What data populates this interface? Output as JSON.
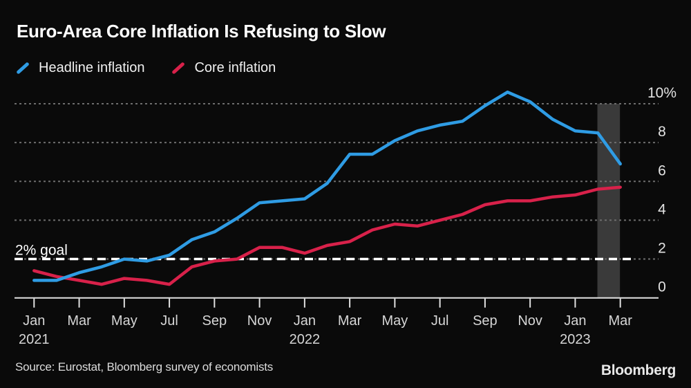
{
  "page": {
    "title": "Euro-Area Core Inflation Is Refusing to Slow",
    "source": "Source: Eurostat, Bloomberg survey of economists",
    "brand": "Bloomberg",
    "background": "#0a0a0a"
  },
  "legend": {
    "items": [
      {
        "label": "Headline inflation",
        "color": "#2f9ce4"
      },
      {
        "label": "Core inflation",
        "color": "#d8214a"
      }
    ]
  },
  "chart_data": {
    "type": "line",
    "title": "Euro-Area Core Inflation Is Refusing to Slow",
    "unit": "%",
    "ylim": [
      0,
      10
    ],
    "grid": "dotted horizontal",
    "legend_position": "top-left",
    "x": [
      "Jan 2021",
      "Feb 2021",
      "Mar 2021",
      "Apr 2021",
      "May 2021",
      "Jun 2021",
      "Jul 2021",
      "Aug 2021",
      "Sep 2021",
      "Oct 2021",
      "Nov 2021",
      "Dec 2021",
      "Jan 2022",
      "Feb 2022",
      "Mar 2022",
      "Apr 2022",
      "May 2022",
      "Jun 2022",
      "Jul 2022",
      "Aug 2022",
      "Sep 2022",
      "Oct 2022",
      "Nov 2022",
      "Dec 2022",
      "Jan 2023",
      "Feb 2023",
      "Mar 2023"
    ],
    "series": [
      {
        "name": "Headline inflation",
        "color": "#2f9ce4",
        "values": [
          0.9,
          0.9,
          1.3,
          1.6,
          2.0,
          1.9,
          2.2,
          3.0,
          3.4,
          4.1,
          4.9,
          5.0,
          5.1,
          5.9,
          7.4,
          7.4,
          8.1,
          8.6,
          8.9,
          9.1,
          9.9,
          10.6,
          10.1,
          9.2,
          8.6,
          8.5,
          6.9
        ]
      },
      {
        "name": "Core inflation",
        "color": "#d8214a",
        "values": [
          1.4,
          1.1,
          0.9,
          0.7,
          1.0,
          0.9,
          0.7,
          1.6,
          1.9,
          2.0,
          2.6,
          2.6,
          2.3,
          2.7,
          2.9,
          3.5,
          3.8,
          3.7,
          4.0,
          4.3,
          4.8,
          5.0,
          5.0,
          5.2,
          5.3,
          5.6,
          5.7
        ]
      }
    ],
    "y_ticks": [
      {
        "value": 0,
        "label": "0"
      },
      {
        "value": 2,
        "label": "2"
      },
      {
        "value": 4,
        "label": "4"
      },
      {
        "value": 6,
        "label": "6"
      },
      {
        "value": 8,
        "label": "8"
      },
      {
        "value": 10,
        "label": "10%"
      }
    ],
    "grid_values": [
      2,
      4,
      6,
      8,
      10
    ],
    "x_ticks": [
      {
        "index": 0,
        "label": "Jan",
        "year": "2021"
      },
      {
        "index": 2,
        "label": "Mar"
      },
      {
        "index": 4,
        "label": "May"
      },
      {
        "index": 6,
        "label": "Jul"
      },
      {
        "index": 8,
        "label": "Sep"
      },
      {
        "index": 10,
        "label": "Nov"
      },
      {
        "index": 12,
        "label": "Jan",
        "year": "2022"
      },
      {
        "index": 14,
        "label": "Mar"
      },
      {
        "index": 16,
        "label": "May"
      },
      {
        "index": 18,
        "label": "Jul"
      },
      {
        "index": 20,
        "label": "Sep"
      },
      {
        "index": 22,
        "label": "Nov"
      },
      {
        "index": 24,
        "label": "Jan",
        "year": "2023"
      },
      {
        "index": 26,
        "label": "Mar"
      }
    ],
    "goal_line": {
      "value": 2,
      "label": "2% goal",
      "color": "#ffffff"
    },
    "highlight_band": {
      "from": "Feb 2023",
      "to": "Mar 2023",
      "from_index": 25,
      "to_index": 26,
      "color": "#3a3a3a"
    },
    "colors": {
      "grid": "#6e6e6e",
      "axis": "#e2e2e2",
      "tick_label": "#d6d6d6",
      "y_label": "#e3e3e3"
    }
  }
}
